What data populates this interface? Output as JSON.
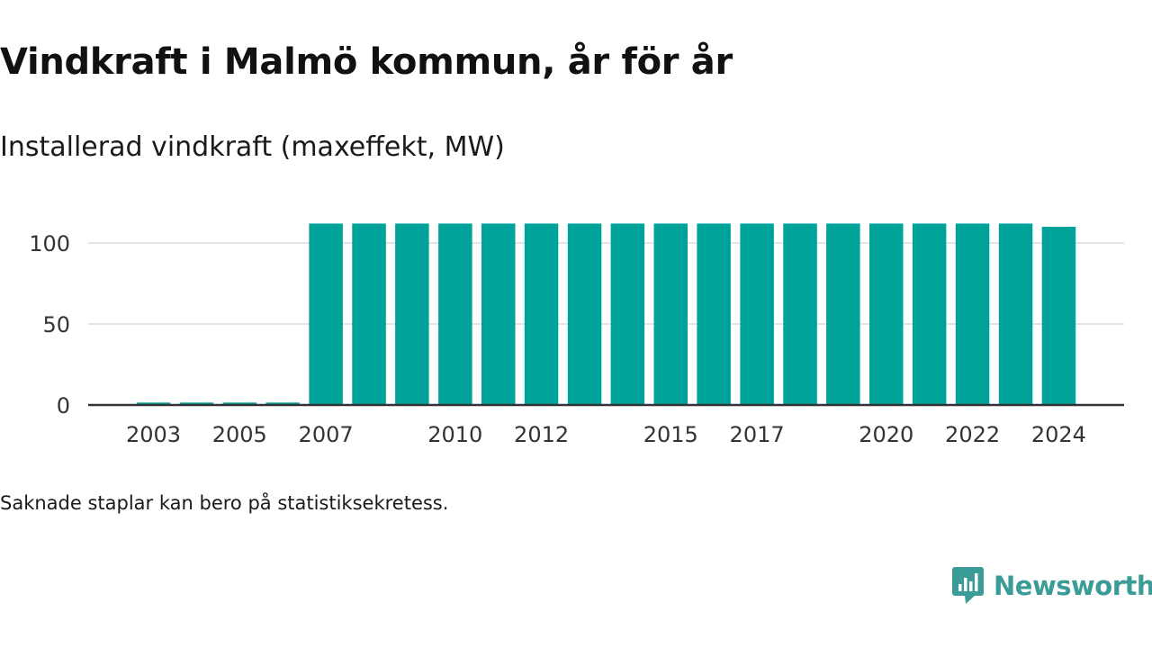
{
  "title": "Vindkraft i Malmö kommun, år för år",
  "subtitle": "Installerad vindkraft (maxeffekt, MW)",
  "note": "Saknade staplar kan bero på statistiksekretess.",
  "brand": {
    "name": "Newsworthy",
    "color": "#3b9c97",
    "icon": "newsworthy-chart-bubble-icon"
  },
  "chart_data": {
    "type": "bar",
    "title": "Installerad vindkraft (maxeffekt, MW)",
    "xlabel": "",
    "ylabel": "",
    "ylim": [
      0,
      115
    ],
    "yticks": [
      0,
      50,
      100
    ],
    "grid": true,
    "legend": "none",
    "bar_color": "#00a39a",
    "categories": [
      "2003",
      "2004",
      "2005",
      "2006",
      "2007",
      "2008",
      "2009",
      "2010",
      "2011",
      "2012",
      "2013",
      "2014",
      "2015",
      "2016",
      "2017",
      "2018",
      "2019",
      "2020",
      "2021",
      "2022",
      "2023",
      "2024"
    ],
    "x_tick_labels": [
      "2003",
      "2005",
      "2007",
      "2010",
      "2012",
      "2015",
      "2017",
      "2020",
      "2022",
      "2024"
    ],
    "values": [
      1.5,
      1.5,
      1.5,
      1.5,
      112,
      112,
      112,
      112,
      112,
      112,
      112,
      112,
      112,
      112,
      112,
      112,
      112,
      112,
      112,
      112,
      112,
      110
    ]
  }
}
